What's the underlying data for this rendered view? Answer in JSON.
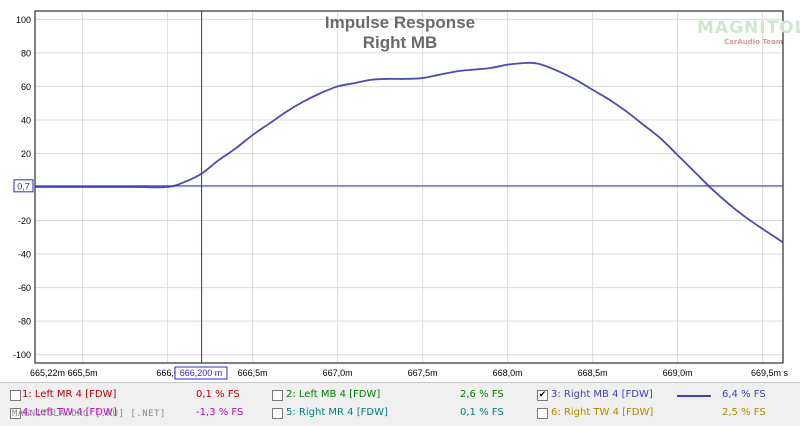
{
  "chart_data": {
    "type": "line",
    "title": "Impulse Response",
    "subtitle": "Right MB",
    "xlabel": "",
    "ylabel": "",
    "xlim": [
      665.22,
      669.62
    ],
    "ylim": [
      -105,
      105
    ],
    "x_tick_labels": [
      {
        "value": 665.22,
        "label": "665,22m"
      },
      {
        "value": 665.5,
        "label": "665,5m"
      },
      {
        "value": 666.0,
        "label": "666,0"
      },
      {
        "value": 666.5,
        "label": "666,5m"
      },
      {
        "value": 667.0,
        "label": "667,0m"
      },
      {
        "value": 667.5,
        "label": "667,5m"
      },
      {
        "value": 668.0,
        "label": "668,0m"
      },
      {
        "value": 668.5,
        "label": "668,5m"
      },
      {
        "value": 669.0,
        "label": "669,0m"
      },
      {
        "value": 669.5,
        "label": "669,5m s"
      }
    ],
    "y_ticks": [
      100,
      80,
      60,
      40,
      20,
      -20,
      -40,
      -60,
      -80,
      -100
    ],
    "grid": true,
    "cursor": {
      "x": 666.2,
      "y": 0.7,
      "x_label": "666,200 m",
      "y_label": "0,7"
    },
    "series": [
      {
        "name": "3: Right MB 4 [FDW]",
        "color": "#4a4ab4",
        "x": [
          665.22,
          665.5,
          665.8,
          666.0,
          666.1,
          666.2,
          666.3,
          666.4,
          666.5,
          666.6,
          666.7,
          666.8,
          666.9,
          667.0,
          667.1,
          667.2,
          667.3,
          667.4,
          667.5,
          667.6,
          667.7,
          667.8,
          667.9,
          668.0,
          668.1,
          668.15,
          668.2,
          668.3,
          668.4,
          668.5,
          668.6,
          668.7,
          668.8,
          668.9,
          669.0,
          669.1,
          669.2,
          669.3,
          669.4,
          669.5,
          669.62
        ],
        "values": [
          0,
          0,
          0,
          0,
          3,
          8,
          16,
          23,
          31,
          38,
          45,
          51,
          56,
          60,
          62,
          64,
          64.5,
          64.5,
          65,
          67,
          69,
          70,
          71,
          73,
          74,
          74,
          73,
          69,
          64,
          58,
          52,
          45,
          37,
          29,
          19,
          9,
          -1,
          -10,
          -18,
          -25,
          -33
        ]
      }
    ]
  },
  "legend": {
    "items": [
      {
        "label": "1: Left MR 4 [FDW]",
        "value": "0,1 % FS",
        "color": "#c00000",
        "checked": false
      },
      {
        "label": "2: Left MB 4 [FDW]",
        "value": "2,6 % FS",
        "color": "#008000",
        "checked": false
      },
      {
        "label": "3: Right MB 4 [FDW]",
        "value": "6,4 % FS",
        "color": "#4040c0",
        "checked": true
      },
      {
        "label": "4: Left TW 4 [FDW]",
        "value": "-1,3 % FS",
        "color": "#c000c0",
        "checked": false
      },
      {
        "label": "5: Right MR 4 [FDW]",
        "value": "0,1 % FS",
        "color": "#008080",
        "checked": false
      },
      {
        "label": "6: Right TW 4 [FDW]",
        "value": "2,5 % FS",
        "color": "#b08800",
        "checked": false
      }
    ],
    "check_mark": "✔"
  },
  "watermark": "MAGNITOLA.ORG [.RU] [.NET]",
  "logo": {
    "text": "MAGNITOLA",
    "sub": "CarAudio Team"
  }
}
